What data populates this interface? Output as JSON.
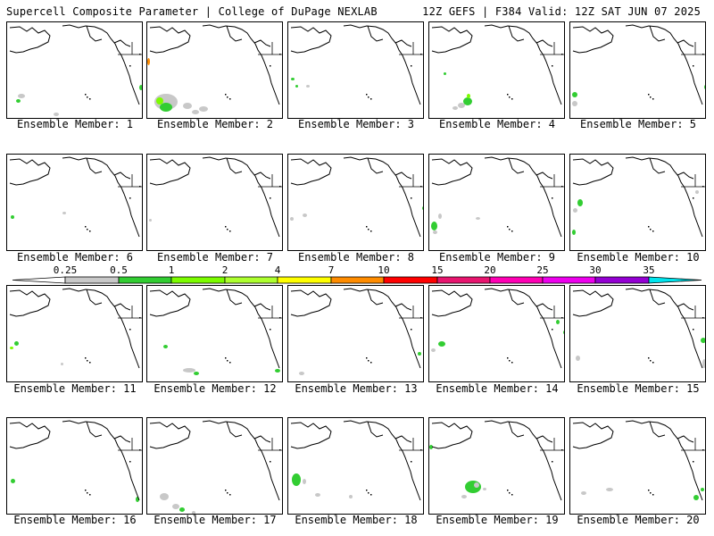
{
  "header": {
    "title_left": "Supercell Composite Parameter | College of DuPage NEXLAB",
    "title_right": "12Z GEFS | F384 Valid: 12Z SAT JUN 07 2025"
  },
  "caption_prefix": "Ensemble Member: ",
  "members": [
    {
      "label": "Ensemble Member: 1"
    },
    {
      "label": "Ensemble Member: 2"
    },
    {
      "label": "Ensemble Member: 3"
    },
    {
      "label": "Ensemble Member: 4"
    },
    {
      "label": "Ensemble Member: 5"
    },
    {
      "label": "Ensemble Member: 6"
    },
    {
      "label": "Ensemble Member: 7"
    },
    {
      "label": "Ensemble Member: 8"
    },
    {
      "label": "Ensemble Member: 9"
    },
    {
      "label": "Ensemble Member: 10"
    },
    {
      "label": "Ensemble Member: 11"
    },
    {
      "label": "Ensemble Member: 12"
    },
    {
      "label": "Ensemble Member: 13"
    },
    {
      "label": "Ensemble Member: 14"
    },
    {
      "label": "Ensemble Member: 15"
    },
    {
      "label": "Ensemble Member: 16"
    },
    {
      "label": "Ensemble Member: 17"
    },
    {
      "label": "Ensemble Member: 18"
    },
    {
      "label": "Ensemble Member: 19"
    },
    {
      "label": "Ensemble Member: 20"
    }
  ],
  "colorbar": {
    "labels": [
      "0.25",
      "0.5",
      "1",
      "2",
      "4",
      "7",
      "10",
      "15",
      "20",
      "25",
      "30",
      "35"
    ],
    "colors": [
      "#c8c8c8",
      "#32cd32",
      "#7cfc00",
      "#adff2f",
      "#ffff00",
      "#ff8c00",
      "#ff0000",
      "#e8156f",
      "#ff00b4",
      "#ee00ee",
      "#9400d3",
      "#b060e0",
      "#00e5ee"
    ],
    "min_color": "#ffffff"
  }
}
